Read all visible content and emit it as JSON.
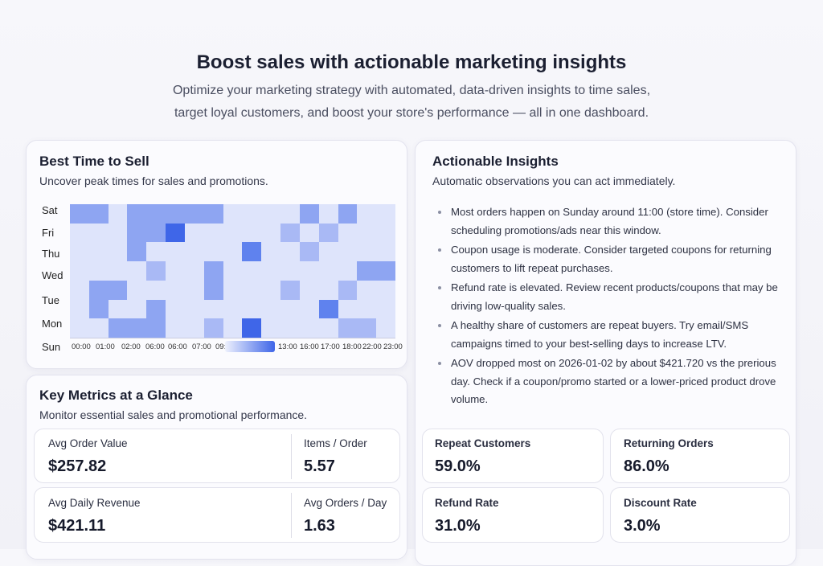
{
  "hero": {
    "title": "Boost sales with actionable marketing insights",
    "subtitle_line1": "Optimize your marketing strategy with automated, data-driven insights to time sales,",
    "subtitle_line2": "target loyal customers, and boost your store's performance — all in one dashboard."
  },
  "best_time": {
    "title": "Best Time to Sell",
    "description": "Uncover peak times for sales and promotions."
  },
  "chart_data": {
    "type": "heatmap",
    "rows": [
      "Sat",
      "Fri",
      "Thu",
      "Wed",
      "Tue",
      "Mon",
      "Sun"
    ],
    "x_tick_labels": [
      "00:00",
      "01:00",
      "02:00",
      "06:00",
      "06:00",
      "07:00",
      "09:",
      "13:00",
      "16:00",
      "17:00",
      "18:00",
      "22:00",
      "23:00"
    ],
    "color_scale": [
      "#dee4fb",
      "#a9b9f5",
      "#8ea5f2",
      "#5f82ee",
      "#3f66e8"
    ],
    "intensity_levels": [
      [
        2,
        2,
        0,
        2,
        2,
        2,
        2,
        2,
        0,
        0,
        0,
        0,
        2,
        0,
        2,
        0,
        0
      ],
      [
        0,
        0,
        0,
        2,
        2,
        4,
        0,
        0,
        0,
        0,
        0,
        1,
        0,
        1,
        0,
        0,
        0
      ],
      [
        0,
        0,
        0,
        2,
        0,
        0,
        0,
        0,
        0,
        3,
        0,
        0,
        1,
        0,
        0,
        0,
        0
      ],
      [
        0,
        0,
        0,
        0,
        1,
        0,
        0,
        2,
        0,
        0,
        0,
        0,
        0,
        0,
        0,
        2,
        2
      ],
      [
        0,
        2,
        2,
        0,
        0,
        0,
        0,
        2,
        0,
        0,
        0,
        1,
        0,
        0,
        1,
        0,
        0
      ],
      [
        0,
        2,
        0,
        0,
        2,
        0,
        0,
        0,
        0,
        0,
        0,
        0,
        0,
        3,
        0,
        0,
        0
      ],
      [
        0,
        0,
        2,
        2,
        2,
        0,
        0,
        1,
        0,
        4,
        0,
        0,
        0,
        0,
        1,
        1,
        0
      ]
    ]
  },
  "insights": {
    "title": "Actionable Insights",
    "description": "Automatic observations you can act immediately.",
    "items": [
      "Most orders happen on Sunday around 11:00 (store time). Consider scheduling promotions/ads near this window.",
      "Coupon usage is moderate. Consider targeted coupons for returning customers to lift repeat purchases.",
      "Refund rate is elevated. Review recent products/coupons that may be driving low-quality sales.",
      "A healthy share of customers are repeat buyers. Try email/SMS campaigns timed to your best-selling days to increase LTV.",
      "AOV dropped most on 2026-01-02 by about $421.720 vs the prerious day. Check if a coupon/promo started or a lower-priced product drove volume."
    ]
  },
  "metrics": {
    "title": "Key Metrics at a Glance",
    "description": "Monitor essential sales and promotional performance.",
    "aov_label": "Avg Order Value",
    "aov": "$257.82",
    "ipo_label": "Items / Order",
    "ipo": "5.57",
    "adr_label": "Avg Daily Revenue",
    "adr": "$421.11",
    "aopd_label": "Avg Orders / Day",
    "aopd": "1.63",
    "repeat_label": "Repeat Customers",
    "repeat": "59.0%",
    "returning_label": "Returning Orders",
    "returning": "86.0%",
    "refund_label": "Refund Rate",
    "refund": "31.0%",
    "discount_label": "Discount Rate",
    "discount": "3.0%"
  }
}
